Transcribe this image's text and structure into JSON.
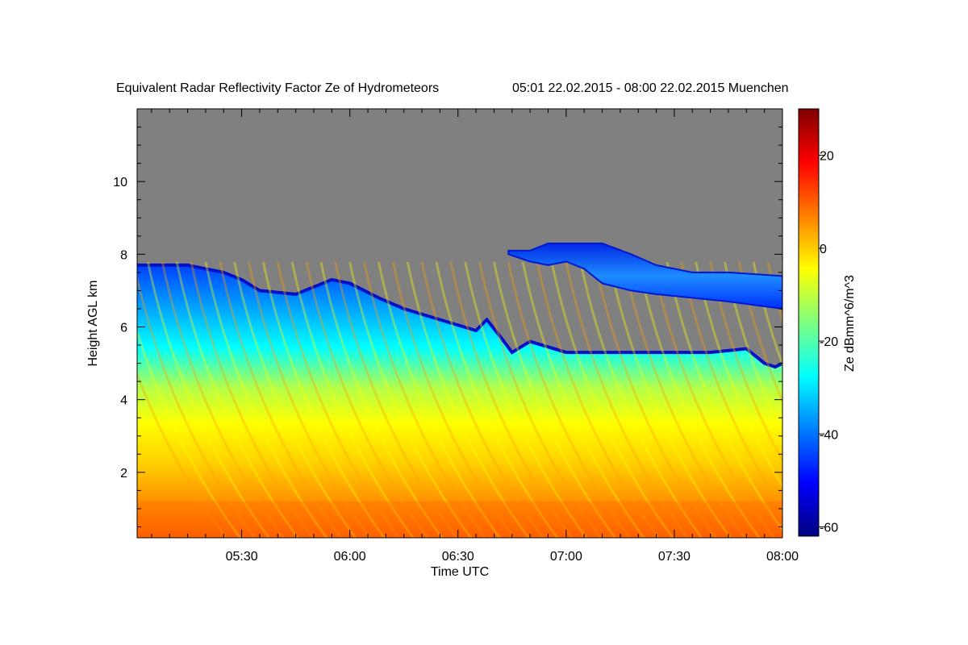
{
  "chart_data": {
    "type": "heatmap",
    "title": "Equivalent Radar Reflectivity Factor Ze of Hydrometeors",
    "period": "05:01 22.02.2015 - 08:00 22.02.2015 Muenchen",
    "xlabel": "Time UTC",
    "ylabel": "Height AGL km",
    "colorbar_label": "Ze dBmm^6/m^3",
    "x_ticks": [
      "05:30",
      "06:00",
      "06:30",
      "07:00",
      "07:30",
      "08:00"
    ],
    "x_tick_minutes": [
      330,
      360,
      390,
      420,
      450,
      480
    ],
    "xlim_minutes": [
      301,
      480
    ],
    "y_ticks": [
      2,
      4,
      6,
      8,
      10
    ],
    "ylim": [
      0.2,
      12.0
    ],
    "colorbar_ticks": [
      20,
      0,
      -20,
      -40,
      -60
    ],
    "colorbar_range": [
      -62,
      30
    ],
    "no_signal_color": "#808080",
    "colormap": [
      "#00007f",
      "#0000ff",
      "#007fff",
      "#00ffff",
      "#7fff7f",
      "#ffff00",
      "#ff7f00",
      "#ff0000",
      "#7f0000"
    ],
    "main_echo_top": {
      "time_minutes": [
        301,
        315,
        325,
        330,
        335,
        345,
        355,
        360,
        368,
        375,
        385,
        395,
        398,
        402,
        405,
        410,
        420,
        430,
        440,
        450,
        460,
        470,
        475,
        478,
        480
      ],
      "height_km": [
        7.7,
        7.7,
        7.5,
        7.3,
        7.0,
        6.9,
        7.3,
        7.2,
        6.8,
        6.5,
        6.2,
        5.9,
        6.2,
        5.7,
        5.3,
        5.6,
        5.3,
        5.3,
        5.3,
        5.3,
        5.3,
        5.4,
        5.0,
        4.9,
        5.0
      ]
    },
    "upper_layer": {
      "time_minutes": [
        404,
        410,
        415,
        420,
        425,
        430,
        438,
        445,
        455,
        465,
        480
      ],
      "top_km": [
        8.1,
        8.1,
        8.3,
        8.3,
        8.3,
        8.3,
        8.0,
        7.7,
        7.5,
        7.5,
        7.4
      ],
      "base_km": [
        8.0,
        7.8,
        7.7,
        7.8,
        7.6,
        7.2,
        7.0,
        6.9,
        6.8,
        6.7,
        6.5
      ]
    }
  }
}
